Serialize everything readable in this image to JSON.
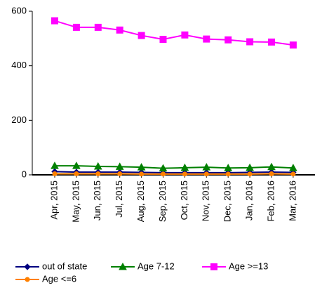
{
  "chart_data": {
    "type": "line",
    "categories": [
      "Apr, 2015",
      "May, 2015",
      "Jun, 2015",
      "Jul, 2015",
      "Aug, 2015",
      "Sep, 2015",
      "Oct, 2015",
      "Nov, 2015",
      "Dec, 2015",
      "Jan, 2016",
      "Feb, 2016",
      "Mar, 2016"
    ],
    "series": [
      {
        "name": "out of state",
        "color": "#000080",
        "marker": "diamond",
        "values": [
          12,
          10,
          10,
          10,
          9,
          8,
          8,
          8,
          8,
          9,
          10,
          9
        ]
      },
      {
        "name": "Age 7-12",
        "color": "#008000",
        "marker": "triangle",
        "values": [
          33,
          33,
          31,
          30,
          28,
          24,
          26,
          28,
          25,
          26,
          29,
          25
        ]
      },
      {
        "name": "Age >=13",
        "color": "#ff00ff",
        "marker": "square",
        "values": [
          565,
          541,
          541,
          531,
          511,
          497,
          513,
          498,
          495,
          488,
          487,
          476
        ]
      },
      {
        "name": "Age <=6",
        "color": "#ff8000",
        "marker": "circle",
        "values": [
          4,
          4,
          4,
          4,
          3,
          3,
          3,
          3,
          3,
          3,
          4,
          3
        ]
      }
    ],
    "ylim": [
      0,
      600
    ],
    "yticks": [
      0,
      200,
      400,
      600
    ],
    "grid": false
  }
}
